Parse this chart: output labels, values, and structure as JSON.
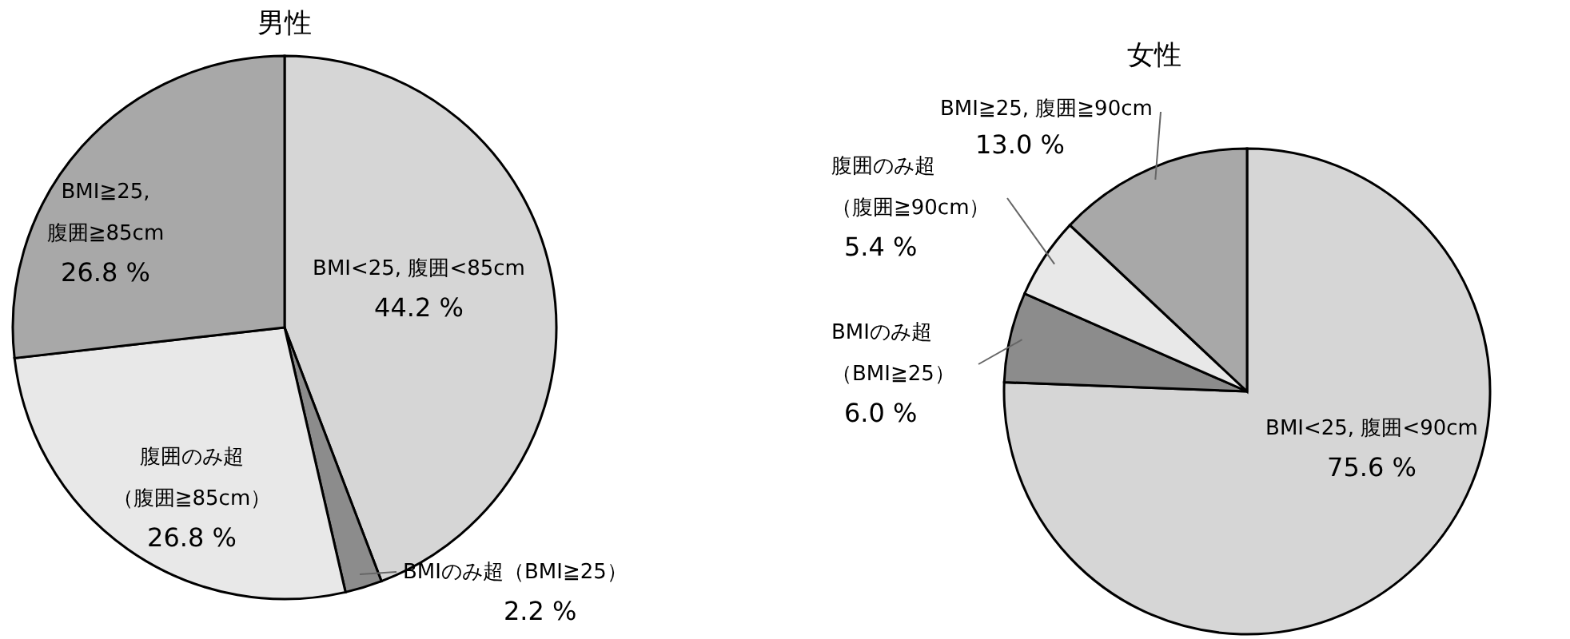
{
  "chart_data": [
    {
      "type": "pie",
      "title": "男性",
      "categories": [
        "BMI<25, 腹囲<85cm",
        "BMIのみ超（BMI≧25）",
        "腹囲のみ超（腹囲≧85cm）",
        "BMI≧25, 腹囲≧85cm"
      ],
      "values": [
        44.2,
        2.2,
        26.8,
        26.8
      ],
      "colors": [
        "#d6d6d6",
        "#8c8c8c",
        "#e8e8e8",
        "#a8a8a8"
      ],
      "value_labels": [
        "44.2 %",
        "2.2 %",
        "26.8 %",
        "26.8 %"
      ]
    },
    {
      "type": "pie",
      "title": "女性",
      "categories": [
        "BMI<25, 腹囲<90cm",
        "BMIのみ超（BMI≧25）",
        "腹囲のみ超（腹囲≧90cm）",
        "BMI≧25, 腹囲≧90cm"
      ],
      "values": [
        75.6,
        6.0,
        5.4,
        13.0
      ],
      "colors": [
        "#d6d6d6",
        "#8c8c8c",
        "#e8e8e8",
        "#a8a8a8"
      ],
      "value_labels": [
        "75.6 %",
        "6.0 %",
        "5.4 %",
        "13.0 %"
      ]
    }
  ]
}
